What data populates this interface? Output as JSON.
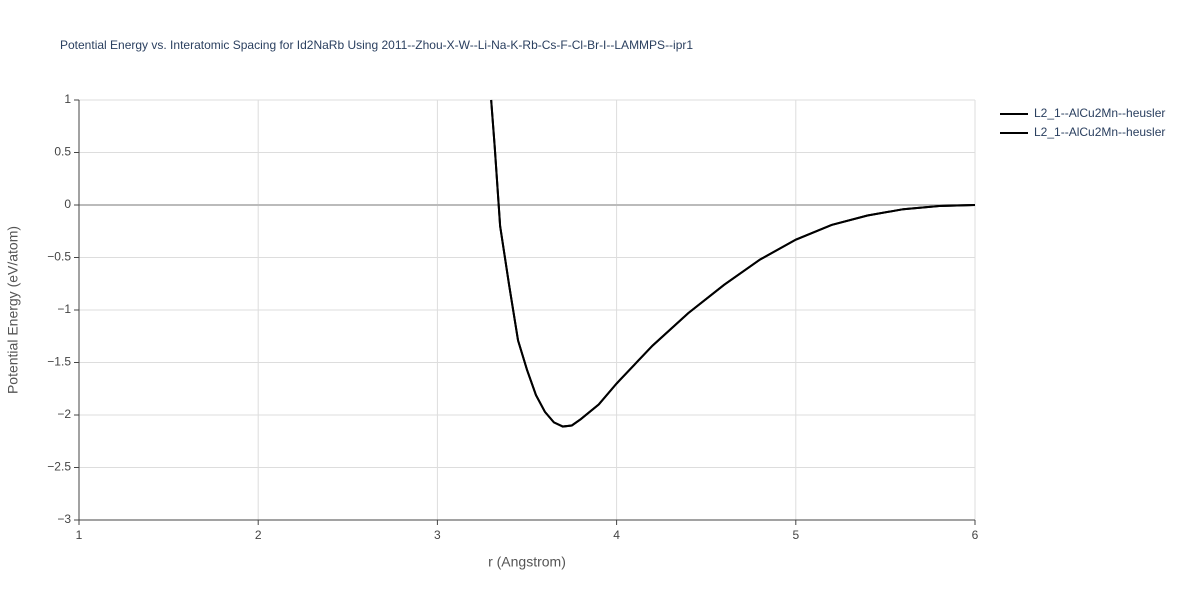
{
  "chart_data": {
    "type": "line",
    "title": "Potential Energy vs. Interatomic Spacing for Id2NaRb Using 2011--Zhou-X-W--Li-Na-K-Rb-Cs-F-Cl-Br-I--LAMMPS--ipr1",
    "x_label": "r (Angstrom)",
    "y_label": "Potential Energy (eV/atom)",
    "x": [
      3.3,
      3.32,
      3.35,
      3.4,
      3.45,
      3.5,
      3.55,
      3.6,
      3.65,
      3.7,
      3.75,
      3.8,
      3.9,
      4.0,
      4.2,
      4.4,
      4.6,
      4.8,
      5.0,
      5.2,
      5.4,
      5.6,
      5.8,
      6.0
    ],
    "series": [
      {
        "name": "L2_1--AlCu2Mn--heusler",
        "color": "#000000",
        "values": [
          1.0,
          0.55,
          -0.2,
          -0.76,
          -1.29,
          -1.57,
          -1.81,
          -1.97,
          -2.07,
          -2.11,
          -2.1,
          -2.04,
          -1.9,
          -1.7,
          -1.34,
          -1.03,
          -0.76,
          -0.52,
          -0.33,
          -0.19,
          -0.1,
          -0.04,
          -0.01,
          0.0
        ]
      },
      {
        "name": "L2_1--AlCu2Mn--heusler",
        "color": "#000000",
        "values": [
          1.0,
          0.55,
          -0.2,
          -0.76,
          -1.29,
          -1.57,
          -1.81,
          -1.97,
          -2.07,
          -2.11,
          -2.1,
          -2.04,
          -1.9,
          -1.7,
          -1.34,
          -1.03,
          -0.76,
          -0.52,
          -0.33,
          -0.19,
          -0.1,
          -0.04,
          -0.01,
          0.0
        ]
      }
    ],
    "xlim": [
      1,
      6
    ],
    "ylim": [
      -3,
      1
    ],
    "xticks": [
      1,
      2,
      3,
      4,
      5,
      6
    ],
    "yticks": [
      1,
      0.5,
      0,
      {
        "value": -0.5,
        "label": "−0.5"
      },
      {
        "value": -1,
        "label": "−1"
      },
      {
        "value": -1.5,
        "label": "−1.5"
      },
      {
        "value": -2,
        "label": "−2"
      },
      {
        "value": -2.5,
        "label": "−2.5"
      },
      {
        "value": -3,
        "label": "−3"
      }
    ],
    "grid": true,
    "legend": "top-right"
  }
}
